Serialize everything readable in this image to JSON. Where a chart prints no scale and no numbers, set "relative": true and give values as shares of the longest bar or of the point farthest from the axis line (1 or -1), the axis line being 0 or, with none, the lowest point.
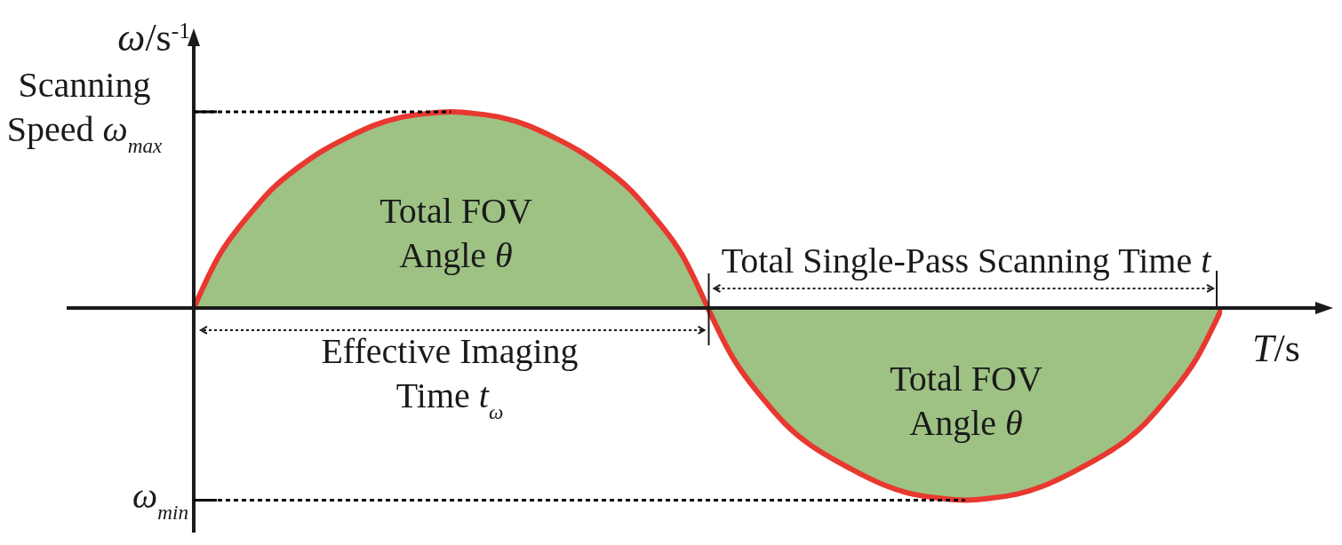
{
  "chart_data": {
    "type": "area",
    "relative": true,
    "xlabel": "T/s",
    "ylabel": "ω/s$^{-1}$",
    "categories": [
      null,
      null,
      null,
      null,
      null,
      null,
      null,
      null,
      null,
      null,
      null,
      null,
      null,
      null,
      null,
      null,
      null,
      null,
      null,
      null,
      null,
      null,
      null,
      null,
      null,
      null,
      null,
      null,
      null,
      null,
      null,
      null,
      null,
      null,
      null,
      null,
      null,
      null,
      null,
      null,
      null
    ],
    "series": [
      {
        "color": "#9ec284",
        "values": [
          0,
          0.27,
          0.45,
          0.6,
          0.71,
          0.8,
          0.87,
          0.93,
          0.97,
          0.99,
          1,
          0.99,
          0.97,
          0.93,
          0.87,
          0.8,
          0.71,
          0.6,
          0.45,
          0.27,
          0,
          -0.26,
          -0.44,
          -0.59,
          -0.7,
          -0.78,
          -0.85,
          -0.91,
          -0.95,
          -0.97,
          -0.98,
          -0.97,
          -0.95,
          -0.91,
          -0.85,
          -0.78,
          -0.7,
          -0.59,
          -0.44,
          -0.26,
          0
        ]
      }
    ],
    "ref_lines": [
      {
        "axis": "y",
        "value": 1,
        "label": "Scanning Speed ω$_{max}$",
        "line_style": "dotted",
        "color": "#000000"
      },
      {
        "axis": "y",
        "value": -0.98,
        "label": "ω$_{min}$",
        "line_style": "dotted",
        "color": "#000000"
      }
    ],
    "annotations": [
      "Total FOV Angle θ",
      "Total Single-Pass Scanning Time t",
      "Effective Imaging Time t$_{ω}$",
      "Total FOV Angle θ"
    ]
  }
}
